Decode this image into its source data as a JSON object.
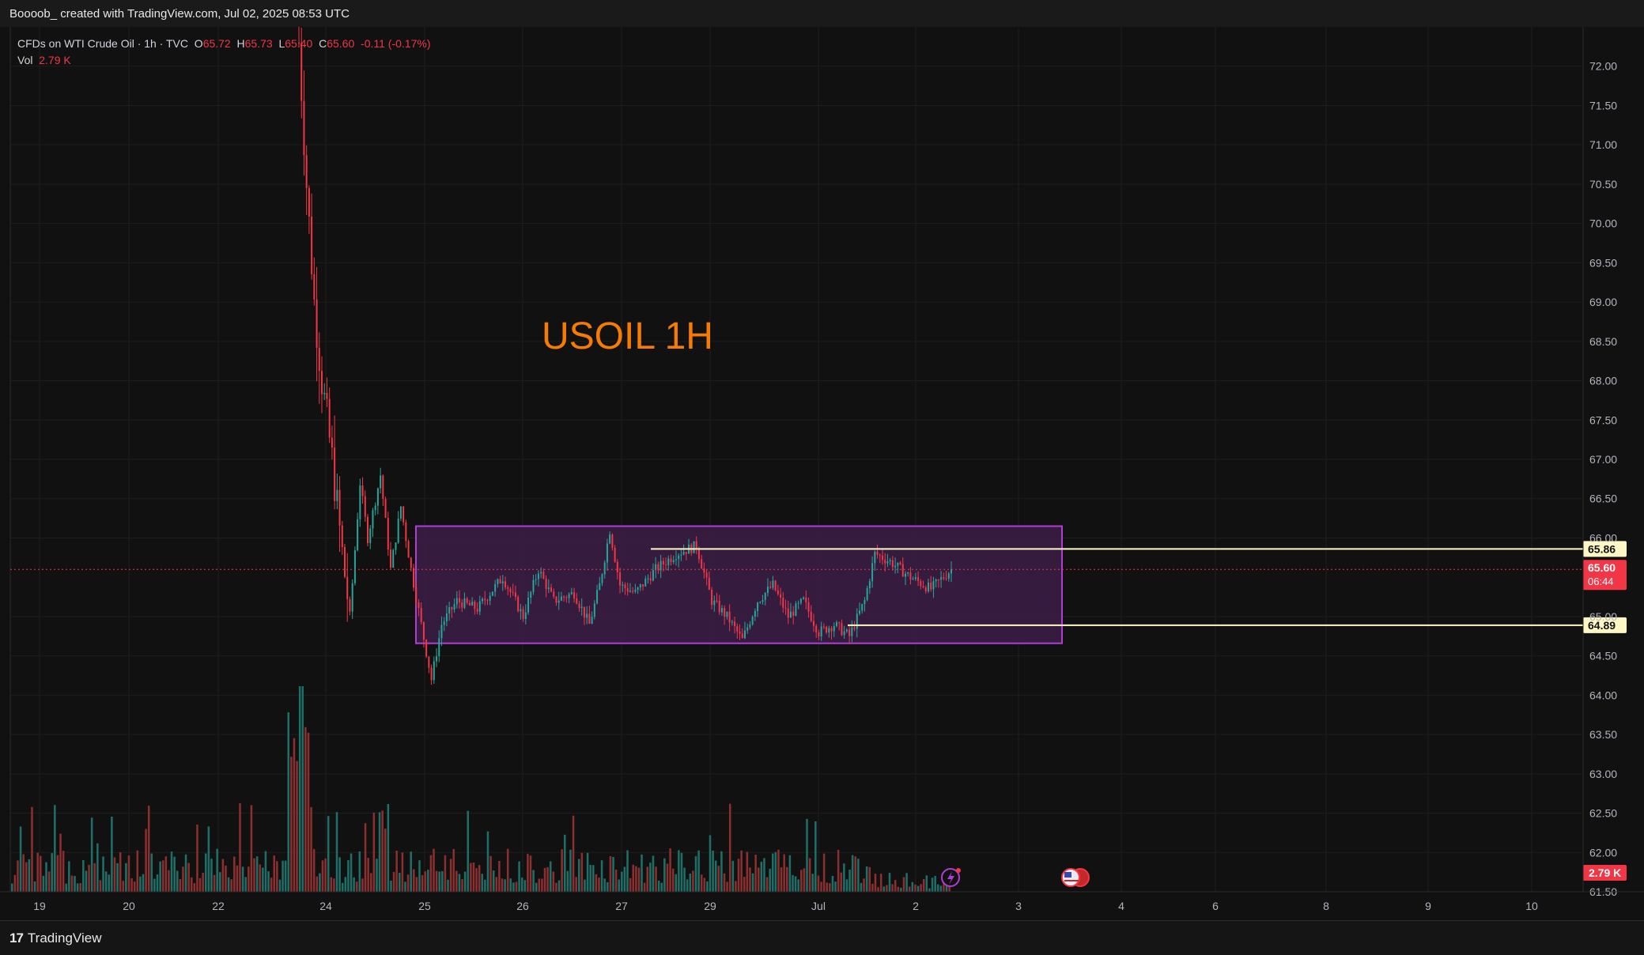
{
  "header": {
    "attribution": "Boooob_ created with TradingView.com, Jul 02, 2025 08:53 UTC"
  },
  "legend": {
    "symbol": "CFDs on WTI Crude Oil · 1h · TVC",
    "open_label": "O",
    "open": "65.72",
    "high_label": "H",
    "high": "65.73",
    "low_label": "L",
    "low": "65.40",
    "close_label": "C",
    "close": "65.60",
    "change": "-0.11 (-0.17%)",
    "vol_label": "Vol",
    "vol": "2.79 K"
  },
  "annotation": "USOIL 1H",
  "footer": {
    "brand": "TradingView",
    "logo": "17"
  },
  "colors": {
    "up": "#26a69a",
    "down": "#f23645",
    "up_vol": "#1f6f69",
    "down_vol": "#8c2f2f",
    "box_fill": "#3c1f48",
    "box_stroke": "#b13cd6",
    "level": "#fff8c4",
    "annotation": "#f57c00",
    "price_badge": "#f23645"
  },
  "chart_data": {
    "type": "candlestick",
    "y_axis": {
      "min": 61.5,
      "max": 72.5,
      "ticks": [
        "72.00",
        "71.50",
        "71.00",
        "70.50",
        "70.00",
        "69.50",
        "69.00",
        "68.50",
        "68.00",
        "67.50",
        "67.00",
        "66.50",
        "66.00",
        "65.00",
        "64.50",
        "64.00",
        "63.50",
        "63.00",
        "62.50",
        "62.00",
        "61.50"
      ]
    },
    "x_axis": {
      "ticks": [
        "19",
        "20",
        "22",
        "24",
        "25",
        "26",
        "27",
        "29",
        "Jul",
        "2",
        "3",
        "4",
        "6",
        "8",
        "9",
        "10"
      ]
    },
    "levels": [
      {
        "label": "65.86",
        "price": 65.86
      },
      {
        "label": "64.89",
        "price": 64.89
      }
    ],
    "range_box": {
      "top": 66.15,
      "bottom": 64.66,
      "start": "Jun 25",
      "end": "Jul 3"
    },
    "last_price": {
      "label": "65.60",
      "countdown": "06:44",
      "price": 65.6
    },
    "last_volume": {
      "label": "2.79 K"
    },
    "grid": true,
    "trend_path": [
      [
        0,
        72.3
      ],
      [
        3,
        70.5
      ],
      [
        6,
        69.0
      ],
      [
        9,
        68.0
      ],
      [
        13,
        67.0
      ],
      [
        17,
        65.8
      ],
      [
        20,
        65.0
      ],
      [
        24,
        66.7
      ],
      [
        27,
        66.0
      ],
      [
        32,
        66.8
      ],
      [
        36,
        65.6
      ],
      [
        40,
        66.4
      ],
      [
        44,
        65.6
      ],
      [
        48,
        64.9
      ],
      [
        52,
        64.2
      ],
      [
        56,
        64.9
      ],
      [
        62,
        65.2
      ],
      [
        70,
        65.1
      ],
      [
        80,
        65.5
      ],
      [
        88,
        65.0
      ],
      [
        94,
        65.6
      ],
      [
        100,
        65.2
      ],
      [
        108,
        65.3
      ],
      [
        114,
        64.9
      ],
      [
        118,
        65.4
      ],
      [
        122,
        66.1
      ],
      [
        126,
        65.4
      ],
      [
        132,
        65.3
      ],
      [
        140,
        65.6
      ],
      [
        148,
        65.8
      ],
      [
        156,
        65.9
      ],
      [
        162,
        65.2
      ],
      [
        168,
        65.0
      ],
      [
        174,
        64.7
      ],
      [
        180,
        65.2
      ],
      [
        186,
        65.4
      ],
      [
        192,
        65.0
      ],
      [
        198,
        65.2
      ],
      [
        204,
        64.8
      ],
      [
        210,
        64.9
      ],
      [
        216,
        64.75
      ],
      [
        222,
        65.2
      ],
      [
        226,
        65.8
      ],
      [
        232,
        65.7
      ],
      [
        240,
        65.5
      ],
      [
        248,
        65.35
      ],
      [
        256,
        65.6
      ]
    ]
  }
}
